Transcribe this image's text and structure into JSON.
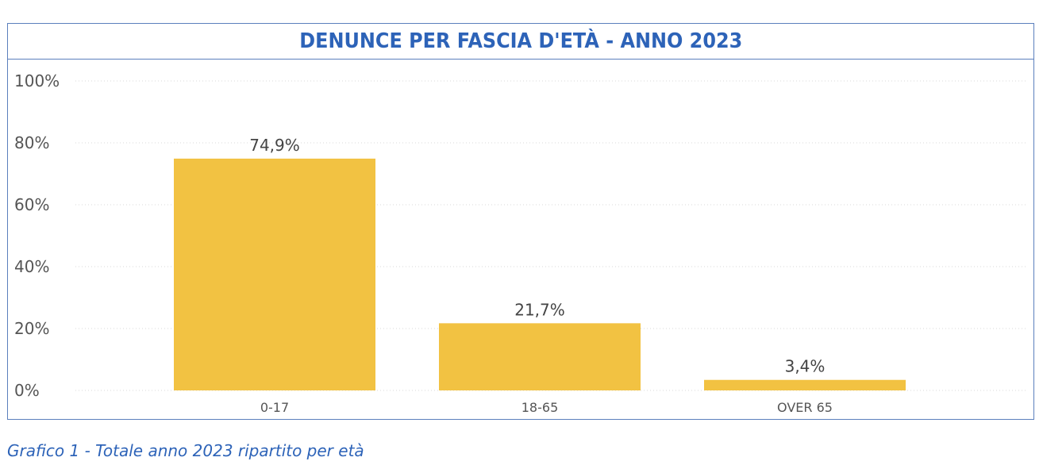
{
  "chart_data": {
    "type": "bar",
    "title": "DENUNCE PER FASCIA D'ETÀ - ANNO 2023",
    "categories": [
      "0-17",
      "18-65",
      "OVER 65"
    ],
    "values": [
      74.9,
      21.7,
      3.4
    ],
    "data_labels": [
      "74,9%",
      "21,7%",
      "3,4%"
    ],
    "ylim": [
      0,
      100
    ],
    "yticks": [
      0,
      20,
      40,
      60,
      80,
      100
    ],
    "ytick_labels": [
      "0%",
      "20%",
      "40%",
      "60%",
      "80%",
      "100%"
    ],
    "xlabel": "",
    "ylabel": "",
    "grid": true,
    "legend": "none",
    "bar_color": "#f2c242",
    "title_color": "#2d63b8",
    "frame_color": "#5b7fbd"
  },
  "caption": "Grafico 1 - Totale anno 2023 ripartito per età"
}
